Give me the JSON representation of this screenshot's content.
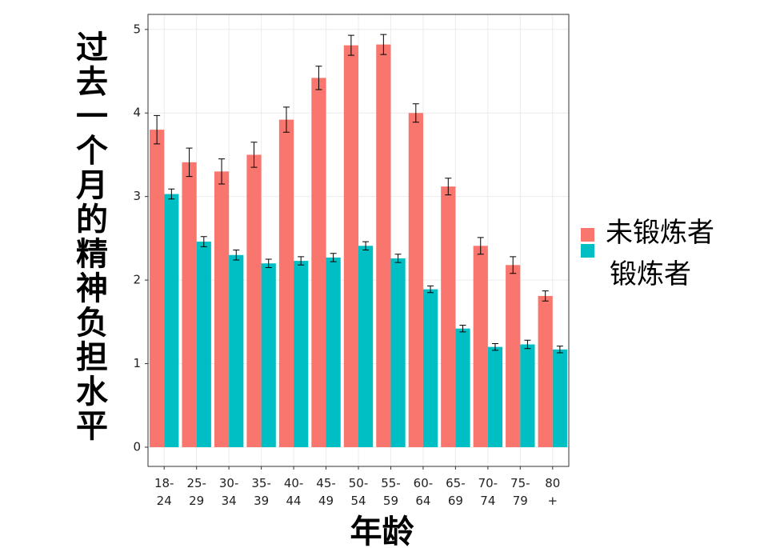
{
  "chart_data": {
    "type": "bar",
    "y_label": "过去一个月的精神负担水平",
    "x_label": "年龄",
    "categories": [
      "18-24",
      "25-29",
      "30-34",
      "35-39",
      "40-44",
      "45-49",
      "50-54",
      "55-59",
      "60-64",
      "65-69",
      "70-74",
      "75-79",
      "80+"
    ],
    "series": [
      {
        "name": "未锻炼者",
        "color": "#f8766d",
        "values": [
          3.8,
          3.41,
          3.3,
          3.5,
          3.92,
          4.42,
          4.81,
          4.82,
          4.0,
          3.12,
          2.41,
          2.18,
          1.81
        ],
        "errors": [
          0.17,
          0.17,
          0.15,
          0.15,
          0.15,
          0.14,
          0.12,
          0.12,
          0.11,
          0.1,
          0.1,
          0.1,
          0.06
        ]
      },
      {
        "name": "锻炼者",
        "color": "#00bfc4",
        "values": [
          3.03,
          2.46,
          2.3,
          2.2,
          2.23,
          2.27,
          2.41,
          2.26,
          1.89,
          1.42,
          1.2,
          1.23,
          1.17
        ],
        "errors": [
          0.06,
          0.06,
          0.06,
          0.05,
          0.05,
          0.05,
          0.05,
          0.05,
          0.04,
          0.04,
          0.04,
          0.05,
          0.04
        ]
      }
    ],
    "ylim": [
      -0.23,
      5.18
    ],
    "yticks": [
      0,
      1,
      2,
      3,
      4,
      5
    ],
    "grid": true
  }
}
